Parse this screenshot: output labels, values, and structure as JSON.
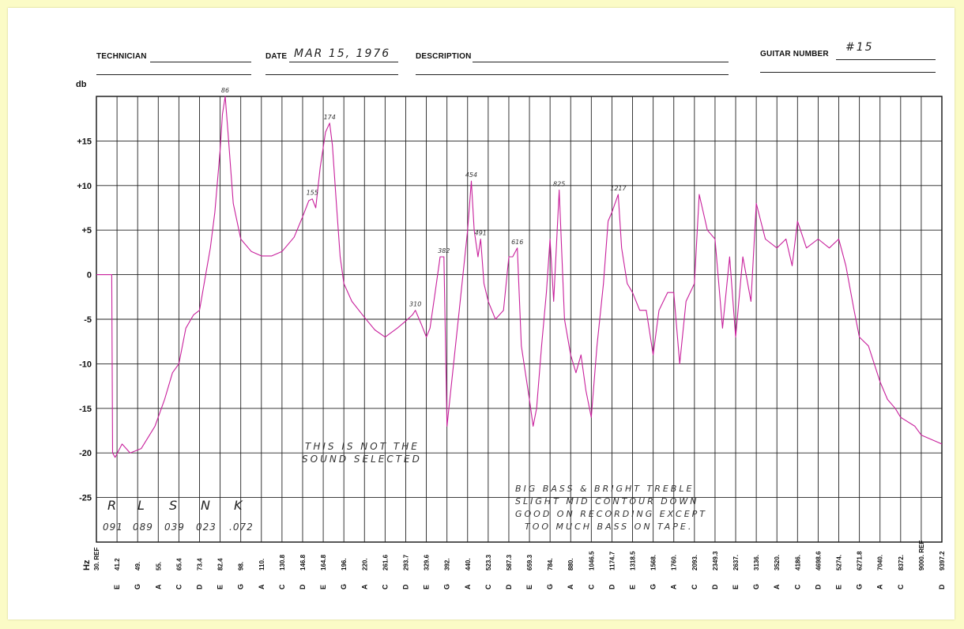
{
  "form": {
    "technician_label": "TECHNICIAN",
    "date_label": "DATE",
    "date_value": "MAR 15, 1976",
    "description_label": "DESCRIPTION",
    "guitar_number_label": "GUITAR NUMBER",
    "guitar_number_value": "#15"
  },
  "notes": {
    "selection_note_1": "THIS IS NOT THE",
    "selection_note_2": "SOUND SELECTED",
    "comment_1": "BIG BASS & BRIGHT TREBLE",
    "comment_2": "SLIGHT MID CONTOUR DOWN",
    "comment_3": "GOOD ON RECORDING EXCEPT",
    "comment_4": "TOO MUCH BASS ON TAPE.",
    "table_headers": [
      "R",
      "L",
      "S",
      "N",
      "K"
    ],
    "table_values": [
      "091",
      "089",
      "039",
      "023",
      ".072"
    ]
  },
  "chart_data": {
    "type": "line",
    "title": "",
    "ylabel": "db",
    "xlabel": "Hz",
    "ylim": [
      -30,
      20
    ],
    "yticks": [
      {
        "value": 15,
        "label": "+15"
      },
      {
        "value": 10,
        "label": "+10"
      },
      {
        "value": 5,
        "label": "+5"
      },
      {
        "value": 0,
        "label": "0"
      },
      {
        "value": -5,
        "label": "-5"
      },
      {
        "value": -10,
        "label": "-10"
      },
      {
        "value": -15,
        "label": "-15"
      },
      {
        "value": -20,
        "label": "-20"
      },
      {
        "value": -25,
        "label": "-25"
      }
    ],
    "x_ticks": [
      {
        "freq": "30. REF",
        "note": ""
      },
      {
        "freq": "41.2",
        "note": "E"
      },
      {
        "freq": "49.",
        "note": "G"
      },
      {
        "freq": "55.",
        "note": "A"
      },
      {
        "freq": "65.4",
        "note": "C"
      },
      {
        "freq": "73.4",
        "note": "D"
      },
      {
        "freq": "82.4",
        "note": "E"
      },
      {
        "freq": "98.",
        "note": "G"
      },
      {
        "freq": "110.",
        "note": "A"
      },
      {
        "freq": "130.8",
        "note": "C"
      },
      {
        "freq": "146.8",
        "note": "D"
      },
      {
        "freq": "164.8",
        "note": "E"
      },
      {
        "freq": "196.",
        "note": "G"
      },
      {
        "freq": "220.",
        "note": "A"
      },
      {
        "freq": "261.6",
        "note": "C"
      },
      {
        "freq": "293.7",
        "note": "D"
      },
      {
        "freq": "329.6",
        "note": "E"
      },
      {
        "freq": "392.",
        "note": "G"
      },
      {
        "freq": "440.",
        "note": "A"
      },
      {
        "freq": "523.3",
        "note": "C"
      },
      {
        "freq": "587.3",
        "note": "D"
      },
      {
        "freq": "659.3",
        "note": "E"
      },
      {
        "freq": "784.",
        "note": "G"
      },
      {
        "freq": "880.",
        "note": "A"
      },
      {
        "freq": "1046.5",
        "note": "C"
      },
      {
        "freq": "1174.7",
        "note": "D"
      },
      {
        "freq": "1318.5",
        "note": "E"
      },
      {
        "freq": "1568.",
        "note": "G"
      },
      {
        "freq": "1760.",
        "note": "A"
      },
      {
        "freq": "2093.",
        "note": "C"
      },
      {
        "freq": "2349.3",
        "note": "D"
      },
      {
        "freq": "2637.",
        "note": "E"
      },
      {
        "freq": "3136.",
        "note": "G"
      },
      {
        "freq": "3520.",
        "note": "A"
      },
      {
        "freq": "4186.",
        "note": "C"
      },
      {
        "freq": "4698.6",
        "note": "D"
      },
      {
        "freq": "5274.",
        "note": "E"
      },
      {
        "freq": "6271.8",
        "note": "G"
      },
      {
        "freq": "7040.",
        "note": "A"
      },
      {
        "freq": "8372.",
        "note": "C"
      },
      {
        "freq": "9000. REF",
        "note": ""
      },
      {
        "freq": "9397.2",
        "note": "D"
      }
    ],
    "series": [
      {
        "color": "#c8209c",
        "points": [
          [
            30,
            0
          ],
          [
            38,
            0
          ],
          [
            38.5,
            -20
          ],
          [
            40,
            -20.5
          ],
          [
            43,
            -19
          ],
          [
            46,
            -20
          ],
          [
            50,
            -19.5
          ],
          [
            54,
            -17
          ],
          [
            58,
            -14
          ],
          [
            62,
            -11
          ],
          [
            65.4,
            -10
          ],
          [
            68,
            -6
          ],
          [
            71,
            -4.5
          ],
          [
            73.4,
            -4
          ],
          [
            76,
            0
          ],
          [
            78,
            3
          ],
          [
            80,
            7
          ],
          [
            82.4,
            14
          ],
          [
            84,
            18
          ],
          [
            86,
            20
          ],
          [
            88,
            16
          ],
          [
            92,
            8
          ],
          [
            98,
            4
          ],
          [
            104,
            2.6
          ],
          [
            110,
            2.1
          ],
          [
            120,
            2.1
          ],
          [
            130.8,
            2.6
          ],
          [
            140,
            4.2
          ],
          [
            146.8,
            6.5
          ],
          [
            152,
            8.3
          ],
          [
            155,
            8.5
          ],
          [
            158,
            7.5
          ],
          [
            162,
            12
          ],
          [
            168,
            16
          ],
          [
            174,
            17
          ],
          [
            178,
            14.5
          ],
          [
            184,
            8
          ],
          [
            190,
            2
          ],
          [
            196,
            -1
          ],
          [
            205,
            -3
          ],
          [
            220,
            -4.8
          ],
          [
            240,
            -6.2
          ],
          [
            261.6,
            -7
          ],
          [
            280,
            -6
          ],
          [
            293.7,
            -5.2
          ],
          [
            305,
            -4.5
          ],
          [
            310,
            -4
          ],
          [
            320,
            -5.5
          ],
          [
            329.6,
            -7
          ],
          [
            340,
            -6
          ],
          [
            355,
            -2
          ],
          [
            370,
            2
          ],
          [
            382,
            2
          ],
          [
            392,
            -17
          ],
          [
            420,
            -4
          ],
          [
            440,
            5
          ],
          [
            454,
            10.5
          ],
          [
            465,
            5
          ],
          [
            480,
            2
          ],
          [
            491,
            4
          ],
          [
            505,
            -1
          ],
          [
            523.3,
            -3
          ],
          [
            545,
            -5
          ],
          [
            570,
            -4
          ],
          [
            587.3,
            2
          ],
          [
            600,
            2
          ],
          [
            616,
            3
          ],
          [
            630,
            -8
          ],
          [
            659.3,
            -14
          ],
          [
            680,
            -17
          ],
          [
            700,
            -15
          ],
          [
            730,
            -8
          ],
          [
            760,
            -2
          ],
          [
            784,
            4
          ],
          [
            800,
            -3
          ],
          [
            825,
            9.5
          ],
          [
            850,
            -5
          ],
          [
            880,
            -9
          ],
          [
            920,
            -11
          ],
          [
            960,
            -9
          ],
          [
            1000,
            -13
          ],
          [
            1046.5,
            -16
          ],
          [
            1080,
            -8
          ],
          [
            1120,
            -1
          ],
          [
            1150,
            6
          ],
          [
            1174.7,
            7
          ],
          [
            1217,
            9
          ],
          [
            1240,
            3
          ],
          [
            1280,
            -1
          ],
          [
            1318.5,
            -2
          ],
          [
            1400,
            -4
          ],
          [
            1480,
            -4
          ],
          [
            1568,
            -9
          ],
          [
            1620,
            -4
          ],
          [
            1700,
            -2
          ],
          [
            1760,
            -2
          ],
          [
            1850,
            -10
          ],
          [
            1950,
            -3
          ],
          [
            2093,
            -1
          ],
          [
            2150,
            9
          ],
          [
            2250,
            5
          ],
          [
            2349.3,
            4
          ],
          [
            2450,
            -6
          ],
          [
            2550,
            2
          ],
          [
            2637,
            -7
          ],
          [
            2800,
            2
          ],
          [
            3000,
            -3
          ],
          [
            3136,
            8
          ],
          [
            3300,
            4
          ],
          [
            3520,
            3
          ],
          [
            3800,
            4
          ],
          [
            4000,
            1
          ],
          [
            4186,
            6
          ],
          [
            4400,
            3
          ],
          [
            4698.6,
            4
          ],
          [
            5000,
            3
          ],
          [
            5274,
            4
          ],
          [
            5600,
            1
          ],
          [
            6000,
            -4
          ],
          [
            6271.8,
            -7
          ],
          [
            6600,
            -8
          ],
          [
            7040,
            -12
          ],
          [
            7500,
            -14
          ],
          [
            8000,
            -15
          ],
          [
            8372,
            -16
          ],
          [
            8800,
            -17
          ],
          [
            9000,
            -18
          ],
          [
            9397.2,
            -19
          ]
        ]
      }
    ],
    "peak_labels": [
      {
        "x": 86,
        "y": 20,
        "text": "86"
      },
      {
        "x": 155,
        "y": 8.5,
        "text": "155"
      },
      {
        "x": 174,
        "y": 17,
        "text": "174"
      },
      {
        "x": 310,
        "y": -4,
        "text": "310"
      },
      {
        "x": 382,
        "y": 2,
        "text": "382"
      },
      {
        "x": 454,
        "y": 10.5,
        "text": "454"
      },
      {
        "x": 491,
        "y": 4,
        "text": "491"
      },
      {
        "x": 616,
        "y": 3,
        "text": "616"
      },
      {
        "x": 825,
        "y": 9.5,
        "text": "825"
      },
      {
        "x": 1217,
        "y": 9,
        "text": "1217"
      }
    ],
    "grid": true
  }
}
